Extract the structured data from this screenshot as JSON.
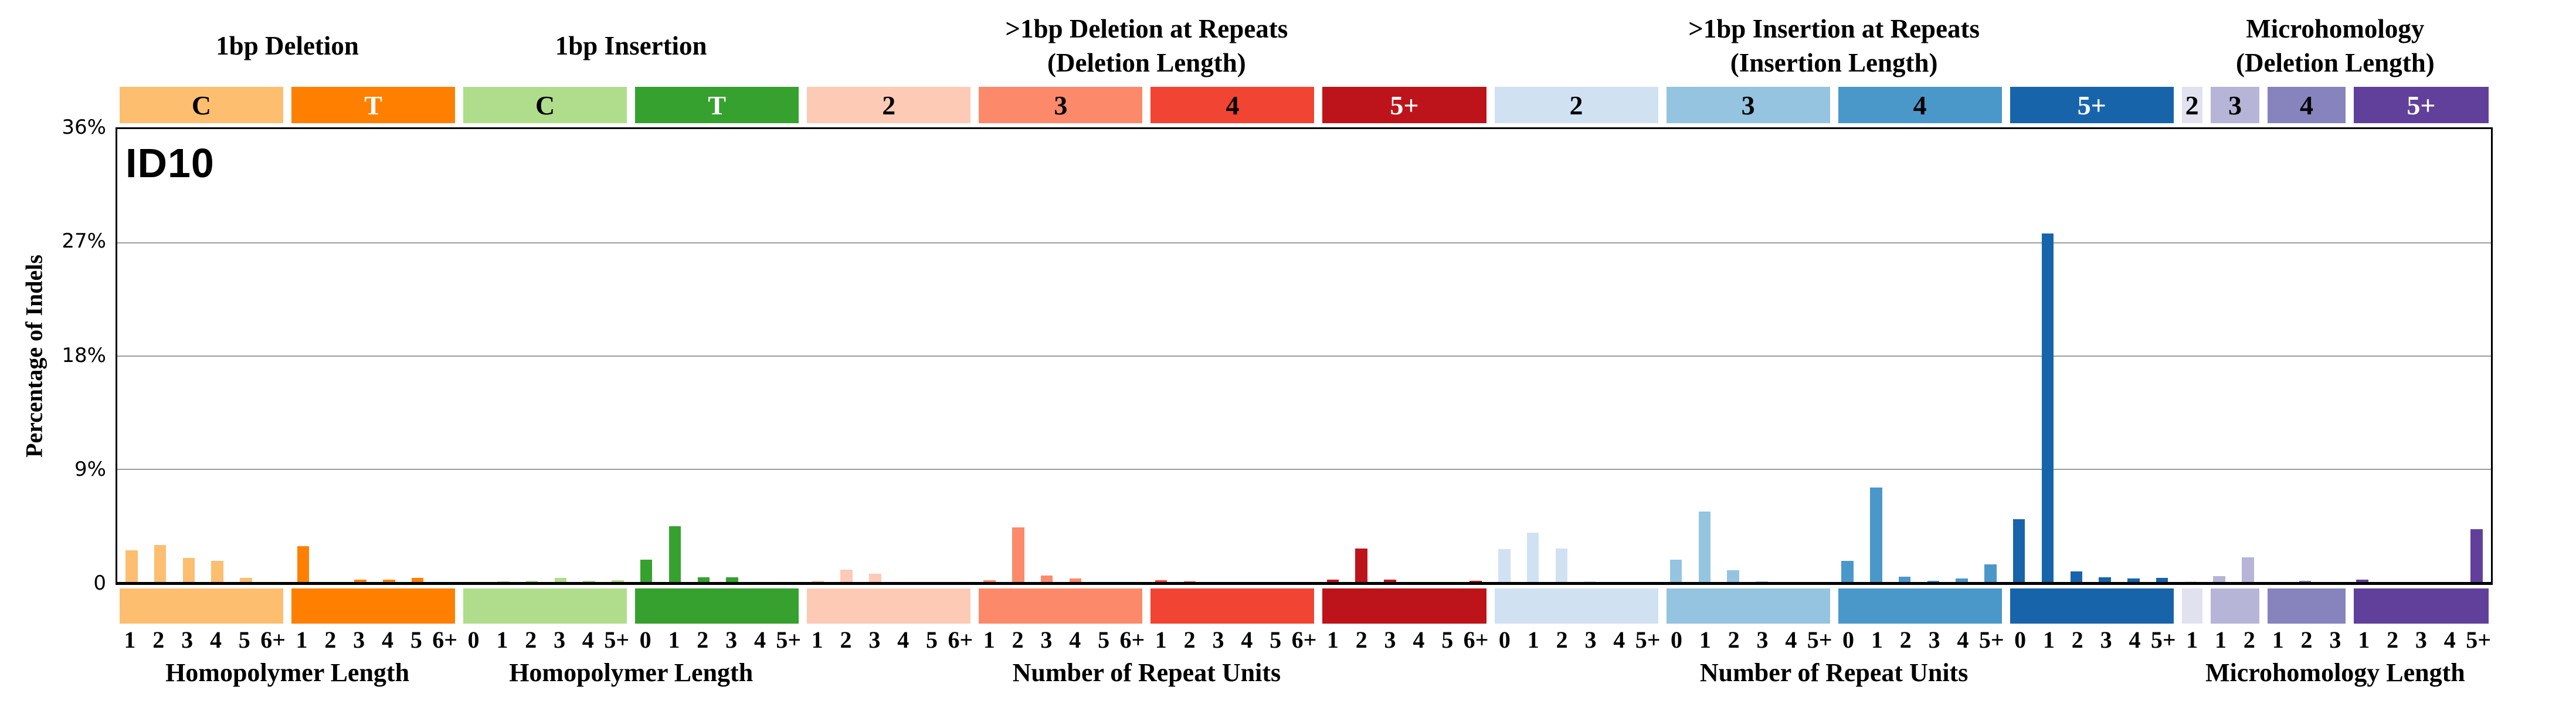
{
  "title": "ID10",
  "y_axis": {
    "label": "Percentage of Indels",
    "ticks": [
      {
        "text": "36%",
        "percent": 36
      },
      {
        "text": "27%",
        "percent": 27
      },
      {
        "text": "18%",
        "percent": 18
      },
      {
        "text": "9%",
        "percent": 9
      },
      {
        "text": "0",
        "percent": 0
      }
    ]
  },
  "chart_data": {
    "type": "bar",
    "title": "ID10",
    "ylabel": "Percentage of Indels",
    "ylim": [
      0,
      36
    ],
    "grid": "horizontal",
    "unit": "percent of indels",
    "groups": [
      {
        "header_lines": [
          "1bp Deletion"
        ],
        "axis_label": "Homopolymer Length",
        "sections": [
          {
            "label": "C",
            "color": "#FDBE6F",
            "label_text_color": "#000000",
            "ticks": [
              "1",
              "2",
              "3",
              "4",
              "5",
              "6+"
            ],
            "values": [
              2.5,
              2.95,
              1.9,
              1.7,
              0.34,
              0
            ]
          },
          {
            "label": "T",
            "color": "#FF8001",
            "label_text_color": "#ffffff",
            "ticks": [
              "1",
              "2",
              "3",
              "4",
              "5",
              "6+"
            ],
            "values": [
              2.85,
              0,
              0.18,
              0.19,
              0.31,
              0
            ]
          }
        ]
      },
      {
        "header_lines": [
          "1bp Insertion"
        ],
        "axis_label": "Homopolymer Length",
        "sections": [
          {
            "label": "C",
            "color": "#B0DD8B",
            "label_text_color": "#000000",
            "ticks": [
              "0",
              "1",
              "2",
              "3",
              "4",
              "5+"
            ],
            "values": [
              0,
              0.06,
              0.1,
              0.31,
              0.08,
              0.15
            ]
          },
          {
            "label": "T",
            "color": "#36A12E",
            "label_text_color": "#ffffff",
            "ticks": [
              "0",
              "1",
              "2",
              "3",
              "4",
              "5+"
            ],
            "values": [
              1.75,
              4.43,
              0.38,
              0.38,
              0,
              0
            ]
          }
        ]
      },
      {
        "header_lines": [
          ">1bp Deletion at Repeats",
          "(Deletion Length)"
        ],
        "axis_label": "Number of Repeat Units",
        "sections": [
          {
            "label": "2",
            "color": "#FDCAB5",
            "label_text_color": "#000000",
            "ticks": [
              "1",
              "2",
              "3",
              "4",
              "5",
              "6+"
            ],
            "values": [
              0.1,
              0.97,
              0.66,
              0,
              0,
              0
            ]
          },
          {
            "label": "3",
            "color": "#FC8A6A",
            "label_text_color": "#000000",
            "ticks": [
              "1",
              "2",
              "3",
              "4",
              "5",
              "6+"
            ],
            "values": [
              0.15,
              4.35,
              0.5,
              0.28,
              0,
              0
            ]
          },
          {
            "label": "4",
            "color": "#F14432",
            "label_text_color": "#000000",
            "ticks": [
              "1",
              "2",
              "3",
              "4",
              "5",
              "6+"
            ],
            "values": [
              0.15,
              0.06,
              0,
              0,
              0,
              0
            ]
          },
          {
            "label": "5+",
            "color": "#BC141A",
            "label_text_color": "#ffffff",
            "ticks": [
              "1",
              "2",
              "3",
              "4",
              "5",
              "6+"
            ],
            "values": [
              0.18,
              2.67,
              0.18,
              0,
              0,
              0.08
            ]
          }
        ]
      },
      {
        "header_lines": [
          ">1bp Insertion at Repeats",
          "(Insertion Length)"
        ],
        "axis_label": "Number of Repeat Units",
        "sections": [
          {
            "label": "2",
            "color": "#D0E1F2",
            "label_text_color": "#000000",
            "ticks": [
              "0",
              "1",
              "2",
              "3",
              "4",
              "5+"
            ],
            "values": [
              2.59,
              3.91,
              2.67,
              0.07,
              0,
              0
            ]
          },
          {
            "label": "3",
            "color": "#94C4DF",
            "label_text_color": "#000000",
            "ticks": [
              "0",
              "1",
              "2",
              "3",
              "4",
              "5+"
            ],
            "values": [
              1.78,
              5.59,
              0.92,
              0.07,
              0,
              0
            ]
          },
          {
            "label": "4",
            "color": "#4A98C9",
            "label_text_color": "#000000",
            "ticks": [
              "0",
              "1",
              "2",
              "3",
              "4",
              "5+"
            ],
            "values": [
              1.66,
              7.53,
              0.43,
              0.09,
              0.3,
              1.4
            ]
          },
          {
            "label": "5+",
            "color": "#1764AB",
            "label_text_color": "#ffffff",
            "ticks": [
              "0",
              "1",
              "2",
              "3",
              "4",
              "5+"
            ],
            "values": [
              4.99,
              27.7,
              0.85,
              0.36,
              0.3,
              0.31
            ]
          }
        ]
      },
      {
        "header_lines": [
          "Microhomology",
          "(Deletion Length)"
        ],
        "axis_label": "Microhomology Length",
        "sections": [
          {
            "label": "2",
            "color": "#E1E1EF",
            "label_text_color": "#000000",
            "ticks": [
              "1"
            ],
            "values": [
              0.06
            ]
          },
          {
            "label": "3",
            "color": "#B6B5D8",
            "label_text_color": "#000000",
            "ticks": [
              "1",
              "2"
            ],
            "values": [
              0.46,
              1.97
            ]
          },
          {
            "label": "4",
            "color": "#8683BD",
            "label_text_color": "#000000",
            "ticks": [
              "1",
              "2",
              "3"
            ],
            "values": [
              0,
              0.1,
              0
            ]
          },
          {
            "label": "5+",
            "color": "#61409B",
            "label_text_color": "#ffffff",
            "ticks": [
              "1",
              "2",
              "3",
              "4",
              "5+"
            ],
            "values": [
              0.2,
              0,
              0,
              0,
              4.2
            ]
          }
        ]
      }
    ]
  }
}
